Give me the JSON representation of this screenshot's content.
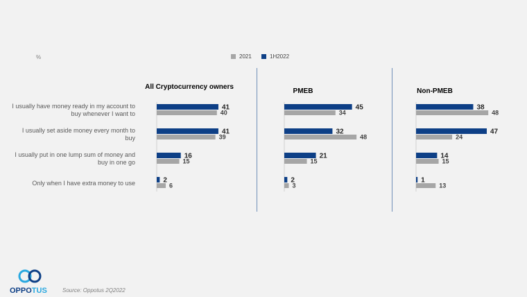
{
  "unit_label": "%",
  "legend": [
    {
      "name": "2021",
      "color": "#a6a6a6"
    },
    {
      "name": "1H2022",
      "color": "#0d3f86"
    }
  ],
  "source": "Source: Oppotus 2Q2022",
  "logo_text": "OPPOTUS",
  "chart_data": {
    "type": "bar",
    "orientation": "horizontal",
    "categories": [
      "I usually have money ready in my account to buy whenever I want to",
      "I usually set aside money every month to buy",
      "I usually put in one lump sum of money and buy in one go",
      "Only when I have extra money to use"
    ],
    "panels": [
      {
        "title": "All Cryptocurrency owners",
        "series": [
          {
            "name": "1H2022",
            "values": [
              41,
              41,
              16,
              2
            ]
          },
          {
            "name": "2021",
            "values": [
              40,
              39,
              15,
              6
            ]
          }
        ]
      },
      {
        "title": "PMEB",
        "series": [
          {
            "name": "1H2022",
            "values": [
              45,
              32,
              21,
              2
            ]
          },
          {
            "name": "2021",
            "values": [
              34,
              48,
              15,
              3
            ]
          }
        ]
      },
      {
        "title": "Non-PMEB",
        "series": [
          {
            "name": "1H2022",
            "values": [
              38,
              47,
              14,
              1
            ]
          },
          {
            "name": "2021",
            "values": [
              48,
              24,
              15,
              13
            ]
          }
        ]
      }
    ]
  }
}
